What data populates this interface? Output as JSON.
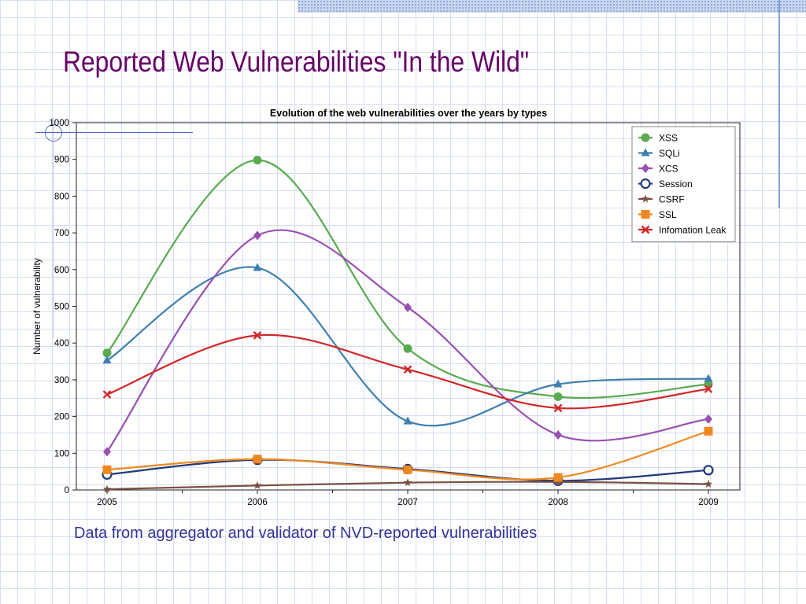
{
  "slide": {
    "title": "Reported Web Vulnerabilities \"In the Wild\"",
    "caption": "Data from aggregator and validator of  NVD-reported vulnerabilities"
  },
  "chart_data": {
    "type": "line",
    "title": "Evolution of the web vulnerabilities over the years by types",
    "xlabel": "",
    "ylabel": "Number of vulnerability",
    "x": [
      "2005",
      "2006",
      "2007",
      "2008",
      "2009"
    ],
    "ylim": [
      0,
      1000
    ],
    "yticks": [
      0,
      100,
      200,
      300,
      400,
      500,
      600,
      700,
      800,
      900,
      1000
    ],
    "grid": false,
    "smooth": true,
    "legend": {
      "position": "top-right"
    },
    "series": [
      {
        "name": "XSS",
        "color": "#5aaa50",
        "marker": "circle",
        "values": [
          373,
          898,
          385,
          254,
          288
        ]
      },
      {
        "name": "SQLi",
        "color": "#3f7fb0",
        "marker": "triangle",
        "values": [
          353,
          605,
          187,
          288,
          303
        ]
      },
      {
        "name": "XCS",
        "color": "#9a50b0",
        "marker": "diamond",
        "values": [
          104,
          693,
          497,
          150,
          193
        ]
      },
      {
        "name": "Session",
        "color": "#203a78",
        "marker": "open-circle",
        "values": [
          42,
          82,
          57,
          25,
          54
        ]
      },
      {
        "name": "CSRF",
        "color": "#7a5040",
        "marker": "star",
        "values": [
          2,
          12,
          20,
          22,
          16
        ]
      },
      {
        "name": "SSL",
        "color": "#f08820",
        "marker": "square",
        "values": [
          55,
          84,
          55,
          34,
          160
        ]
      },
      {
        "name": "Infomation Leak",
        "color": "#d02828",
        "marker": "x",
        "values": [
          260,
          421,
          328,
          223,
          275
        ]
      }
    ]
  }
}
